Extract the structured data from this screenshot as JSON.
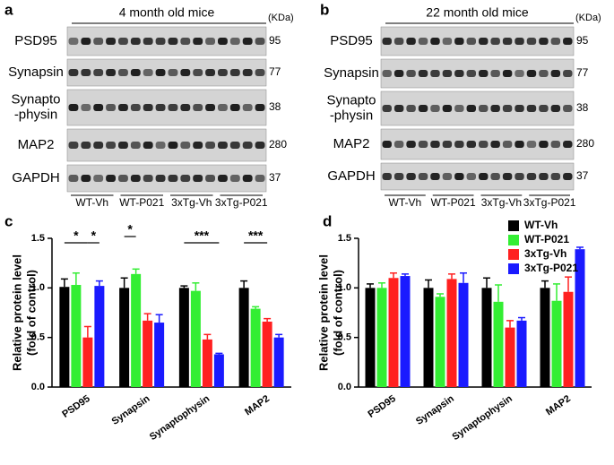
{
  "blots": [
    {
      "panel_label": "a",
      "title": "4 month old mice",
      "unit": "(KDa)",
      "rows": [
        {
          "name": [
            "PSD95"
          ],
          "kda": "95"
        },
        {
          "name": [
            "Synapsin"
          ],
          "kda": "77"
        },
        {
          "name": [
            "Synapto",
            "-physin"
          ],
          "kda": "38"
        },
        {
          "name": [
            "MAP2"
          ],
          "kda": "280"
        },
        {
          "name": [
            "GAPDH"
          ],
          "kda": "37"
        }
      ],
      "groups": [
        "WT-Vh",
        "WT-P021",
        "3xTg-Vh",
        "3xTg-P021"
      ]
    },
    {
      "panel_label": "b",
      "title": "22 month old mice",
      "unit": "(KDa)",
      "rows": [
        {
          "name": [
            "PSD95"
          ],
          "kda": "95"
        },
        {
          "name": [
            "Synapsin"
          ],
          "kda": "77"
        },
        {
          "name": [
            "Synapto",
            "-physin"
          ],
          "kda": "38"
        },
        {
          "name": [
            "MAP2"
          ],
          "kda": "280"
        },
        {
          "name": [
            "GAPDH"
          ],
          "kda": "37"
        }
      ],
      "groups": [
        "WT-Vh",
        "WT-P021",
        "3xTg-Vh",
        "3xTg-P021"
      ]
    }
  ],
  "chart_data": [
    {
      "type": "bar",
      "panel_label": "c",
      "ylabel": [
        "Relative protein level",
        "(fold of control)"
      ],
      "categories": [
        "PSD95",
        "Synapsin",
        "Synaptophysin",
        "MAP2"
      ],
      "ylim": [
        0,
        1.5
      ],
      "yticks": [
        {
          "value": 0,
          "label": "0.0"
        },
        0.5,
        {
          "value": 1,
          "label": "1.0"
        },
        1.5
      ],
      "series": [
        {
          "name": "WT-Vh",
          "color": "#000000",
          "values": [
            1.01,
            1.0,
            1.0,
            1.0
          ],
          "errors": [
            0.08,
            0.1,
            0.02,
            0.07
          ]
        },
        {
          "name": "WT-P021",
          "color": "#33ee33",
          "values": [
            1.03,
            1.14,
            0.97,
            0.79
          ],
          "errors": [
            0.12,
            0.05,
            0.08,
            0.02
          ]
        },
        {
          "name": "3xTg-Vh",
          "color": "#ff2020",
          "values": [
            0.5,
            0.67,
            0.48,
            0.66
          ],
          "errors": [
            0.11,
            0.07,
            0.05,
            0.03
          ]
        },
        {
          "name": "3xTg-P021",
          "color": "#1a1aff",
          "values": [
            1.02,
            0.65,
            0.33,
            0.5
          ],
          "errors": [
            0.05,
            0.08,
            0.01,
            0.03
          ]
        }
      ],
      "annotations": [
        "*",
        "*",
        "*",
        "***",
        "***"
      ],
      "legend": false
    },
    {
      "type": "bar",
      "panel_label": "d",
      "ylabel": [
        "Relative protein level",
        "(fold of control)"
      ],
      "categories": [
        "PSD95",
        "Synapsin",
        "Synaptophysin",
        "MAP2"
      ],
      "ylim": [
        0,
        1.5
      ],
      "yticks": [
        {
          "value": 0,
          "label": "0.0"
        },
        0.5,
        {
          "value": 1,
          "label": "1.0"
        },
        1.5
      ],
      "series": [
        {
          "name": "WT-Vh",
          "color": "#000000",
          "values": [
            1.0,
            1.0,
            1.0,
            1.0
          ],
          "errors": [
            0.04,
            0.08,
            0.1,
            0.07
          ]
        },
        {
          "name": "WT-P021",
          "color": "#33ee33",
          "values": [
            1.0,
            0.91,
            0.86,
            0.87
          ],
          "errors": [
            0.05,
            0.03,
            0.17,
            0.17
          ]
        },
        {
          "name": "3xTg-Vh",
          "color": "#ff2020",
          "values": [
            1.1,
            1.09,
            0.6,
            0.96
          ],
          "errors": [
            0.05,
            0.05,
            0.07,
            0.15
          ]
        },
        {
          "name": "3xTg-P021",
          "color": "#1a1aff",
          "values": [
            1.12,
            1.05,
            0.67,
            1.39
          ],
          "errors": [
            0.02,
            0.1,
            0.03,
            0.02
          ]
        }
      ],
      "annotations": [],
      "legend": true
    }
  ]
}
